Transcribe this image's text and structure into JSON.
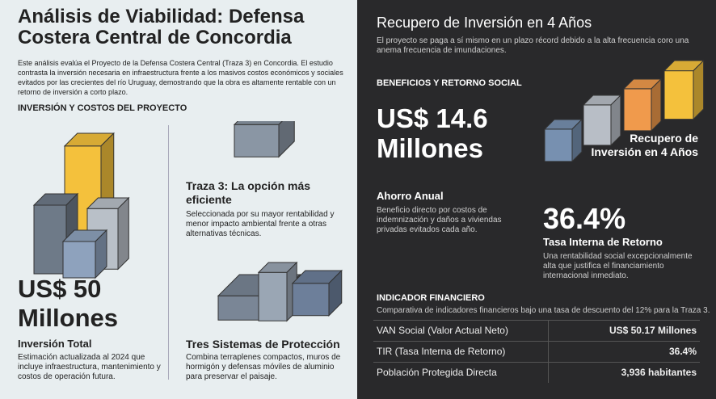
{
  "left": {
    "title": "Análisis de Viabilidad: Defensa Costera Central de Concordia",
    "intro": "Este análisis evalúa el Proyecto de la Defensa Costera Central (Traza 3) en Concordia. El estudio contrasta la inversión necesaria en infraestructura frente a los masivos costos económicos y sociales evitados por las crecientes del río Uruguay, demostrando que la obra es altamente rentable con un retorno de inversión a corto plazo.",
    "section": "INVERSIÓN Y COSTOS DEL PROYECTO",
    "investment": {
      "figure": "US$ 50 Millones",
      "label": "Inversión Total",
      "text": "Estimación actualizada al 2024 que incluye infraestructura, mantenimiento y costos de operación futura."
    },
    "route": {
      "title": "Traza 3: La opción más eficiente",
      "text": "Seleccionada por su mayor rentabilidad y menor impacto ambiental frente a otras alternativas técnicas."
    },
    "systems": {
      "title": "Tres Sistemas de Protección",
      "text": "Combina terraplenes compactos, muros de hormigón y defensas móviles de aluminio para preservar el paisaje."
    }
  },
  "right": {
    "title": "Recupero de Inversión en 4 Años",
    "subtitle": "El proyecto se paga a sí mismo en un plazo récord debido a la alta frecuencia coro una anema frecuencia de imundaciones.",
    "section": "BENEFICIOS Y RETORNO SOCIAL",
    "benefit": "US$ 14.6 Millones",
    "recovery_label": "Recupero de Inversión en 4 Años",
    "savings": {
      "title": "Ahorro Anual",
      "text": "Beneficio directo por costos de indemnización y daños a viviendas privadas evitados cada año."
    },
    "irr": {
      "figure": "36.4%",
      "title": "Tasa Interna de Retorno",
      "text": "Una rentabilidad social excepcionalmente alta que justifica el financiamiento internacional inmediato."
    },
    "table": {
      "title": "INDICADOR FINANCIERO",
      "caption": "Comparativa de indicadores financieros bajo una tasa de descuento del 12% para la Traza 3.",
      "rows": [
        [
          "VAN Social (Valor Actual Neto)",
          "US$ 50.17 Millones"
        ],
        [
          "TIR (Tasa Interna de Retorno)",
          "36.4%"
        ],
        [
          "Población Protegida Directa",
          "3,936 habitantes"
        ]
      ]
    }
  }
}
